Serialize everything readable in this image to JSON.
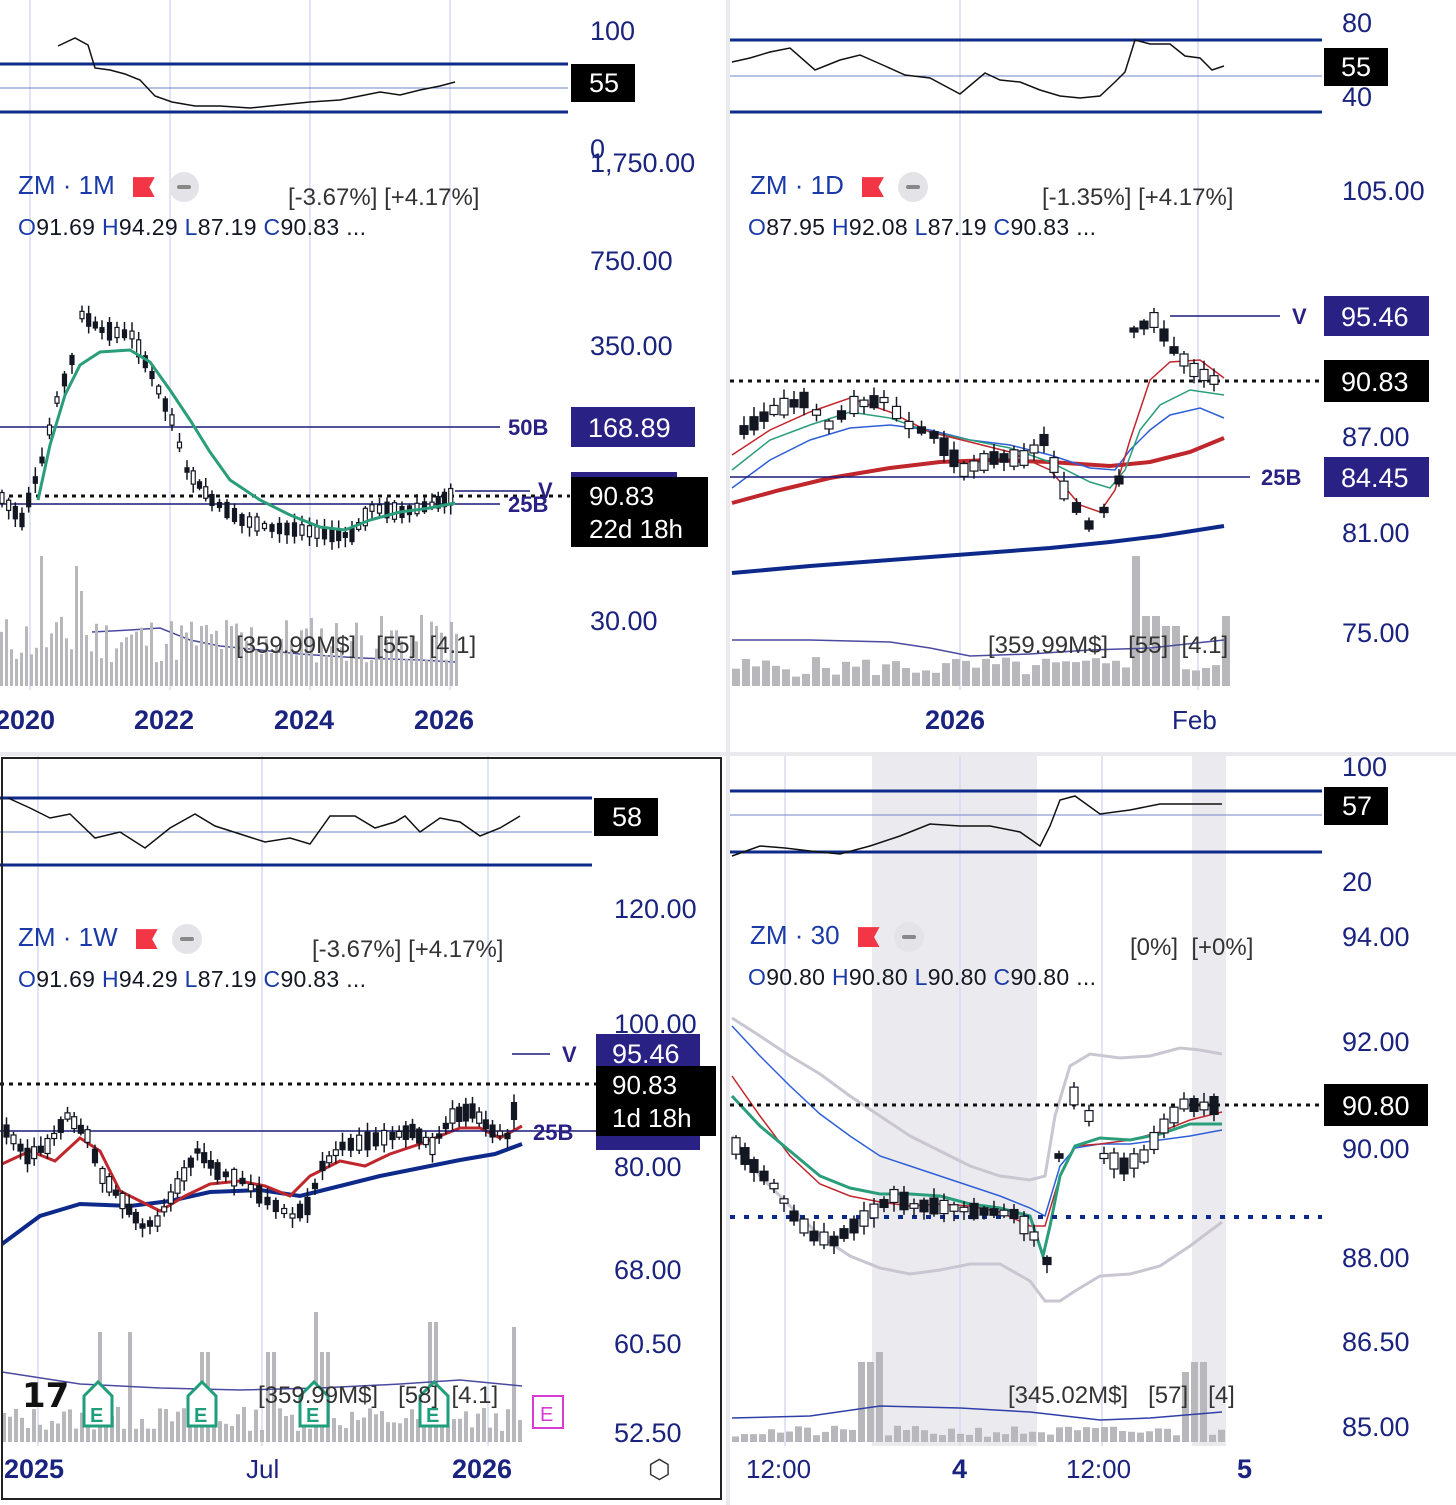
{
  "symbol": "ZM",
  "colors": {
    "axis_text": "#1a237e",
    "level_line": "#1a1a7a",
    "badge_blue": "#2a2185",
    "rsi_band": "#0d2a8a",
    "sma_teal": "#2a9d7a",
    "ema_red": "#c0272d",
    "ema_blue": "#2f5fd6",
    "ma_navy": "#0d2a8a",
    "volume_bar": "#b8b8bc",
    "session_shade": "#ebebef"
  },
  "panels": [
    {
      "interval": "1M",
      "ohlc": {
        "o": "O",
        "o_val": "91.69",
        "h": "H",
        "h_val": "94.29",
        "l": "L",
        "l_val": "87.19",
        "c": "C",
        "c_val": "90.83",
        "more": "..."
      },
      "change_pct": "[-3.67%]",
      "change_alt": "[+4.17%]",
      "volume_info": {
        "v1": "[359.99M$]",
        "v2": "[55]",
        "v3": "[4.1]"
      },
      "rsi": {
        "value_label": "55",
        "ticks": [
          "100",
          "0"
        ]
      },
      "price_ticks": [
        "1,750.00",
        "750.00",
        "350.00",
        "168.89",
        "30.00"
      ],
      "x_ticks": [
        "2020",
        "2022",
        "2024",
        "2026"
      ],
      "markers": {
        "level_50b": "50B",
        "level_25b": "25B",
        "v": "V"
      },
      "badges": {
        "level": "168.89",
        "price": "90.83",
        "countdown": "22d 18h"
      }
    },
    {
      "interval": "1D",
      "ohlc": {
        "o": "O",
        "o_val": "87.95",
        "h": "H",
        "h_val": "92.08",
        "l": "L",
        "l_val": "87.19",
        "c": "C",
        "c_val": "90.83",
        "more": "..."
      },
      "change_pct": "[-1.35%]",
      "change_alt": "[+4.17%]",
      "volume_info": {
        "v1": "[359.99M$]",
        "v2": "[55]",
        "v3": "[4.1]"
      },
      "rsi": {
        "value_label": "55",
        "ticks": [
          "80",
          "40"
        ]
      },
      "price_ticks": [
        "105.00",
        "87.00",
        "81.00",
        "75.00"
      ],
      "x_ticks": [
        "2026",
        "Feb"
      ],
      "markers": {
        "level_25b": "25B",
        "v": "V"
      },
      "badges": {
        "v_price": "95.46",
        "price": "90.83",
        "level": "84.45"
      }
    },
    {
      "interval": "1W",
      "ohlc": {
        "o": "O",
        "o_val": "91.69",
        "h": "H",
        "h_val": "94.29",
        "l": "L",
        "l_val": "87.19",
        "c": "C",
        "c_val": "90.83",
        "more": "..."
      },
      "change_pct": "[-3.67%]",
      "change_alt": "[+4.17%]",
      "volume_info": {
        "v1": "[359.99M$]",
        "v2": "[58]",
        "v3": "[4.1]"
      },
      "rsi": {
        "value_label": "58",
        "ticks": []
      },
      "price_ticks": [
        "120.00",
        "100.00",
        "80.00",
        "68.00",
        "60.50",
        "52.50"
      ],
      "x_ticks": [
        "2025",
        "Jul",
        "2026"
      ],
      "markers": {
        "level_25b": "25B",
        "v": "V",
        "earnings": "E"
      },
      "badges": {
        "v_price": "95.46",
        "price": "90.83",
        "countdown": "1d 18h"
      }
    },
    {
      "interval": "30",
      "ohlc": {
        "o": "O",
        "o_val": "90.80",
        "h": "H",
        "h_val": "90.80",
        "l": "L",
        "l_val": "90.80",
        "c": "C",
        "c_val": "90.80",
        "more": "..."
      },
      "change_pct": "[0%]",
      "change_alt": "[+0%]",
      "volume_info": {
        "v1": "[345.02M$]",
        "v2": "[57]",
        "v3": "[4]"
      },
      "rsi": {
        "value_label": "57",
        "ticks": [
          "100",
          "20"
        ]
      },
      "price_ticks": [
        "94.00",
        "92.00",
        "90.00",
        "88.00",
        "86.50",
        "85.00"
      ],
      "x_ticks": [
        "12:00",
        "4",
        "12:00",
        "5"
      ],
      "badges": {
        "price": "90.80"
      }
    }
  ],
  "chart_data": [
    {
      "type": "candlestick",
      "interval": "1M",
      "scale": "log",
      "x": [
        "2020",
        "2022",
        "2024",
        "2026"
      ],
      "last_close": 90.83,
      "levels": {
        "50B": 168.89,
        "25B": 84.45
      },
      "v_level": 95.46,
      "rsi": 55
    },
    {
      "type": "candlestick",
      "interval": "1D",
      "x": [
        "2026",
        "Feb"
      ],
      "last_close": 90.83,
      "v_level": 95.46,
      "levels": {
        "25B": 84.45
      },
      "rsi": 55
    },
    {
      "type": "candlestick",
      "interval": "1W",
      "x": [
        "2025",
        "Jul",
        "2026"
      ],
      "last_close": 90.83,
      "v_level": 95.46,
      "rsi": 58
    },
    {
      "type": "candlestick",
      "interval": "30",
      "x": [
        "12:00",
        "4",
        "12:00",
        "5"
      ],
      "last_close": 90.8,
      "rsi": 57
    }
  ]
}
